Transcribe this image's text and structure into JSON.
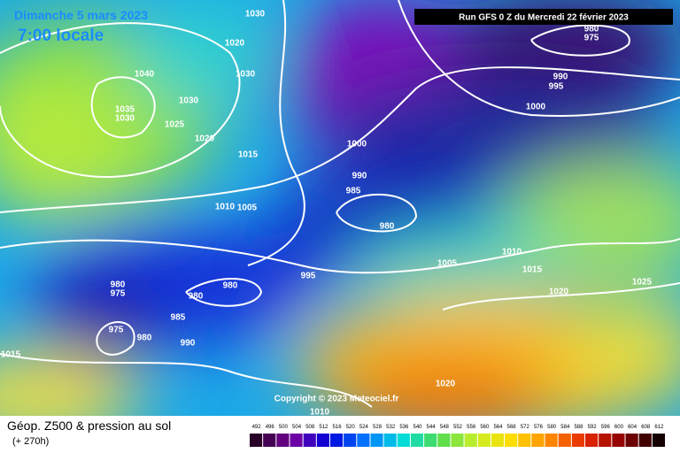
{
  "header": {
    "date": "Dimanche 5 mars 2023",
    "time": "7:00 locale",
    "run": "Run GFS 0 Z du Mercredi 22 février 2023"
  },
  "map": {
    "isobar_labels": [
      "1030",
      "1020",
      "1040",
      "1030",
      "1035",
      "1030",
      "1030",
      "1025",
      "1020",
      "1015",
      "1010",
      "1005",
      "1000",
      "990",
      "985",
      "980",
      "980",
      "975",
      "990",
      "995",
      "1000",
      "1010",
      "1015",
      "1005",
      "1020",
      "1025",
      "995",
      "980",
      "975",
      "980",
      "980",
      "985",
      "975",
      "980",
      "990",
      "1015",
      "1020",
      "1010"
    ],
    "copyright": "Copyright © 2023 Meteociel.fr"
  },
  "footer": {
    "title": "Géop. Z500 & pression au sol",
    "lead": "(+ 270h)"
  },
  "colorbar": {
    "ticks": [
      492,
      496,
      500,
      504,
      508,
      512,
      516,
      520,
      524,
      528,
      532,
      536,
      540,
      544,
      548,
      552,
      556,
      560,
      564,
      568,
      572,
      576,
      580,
      584,
      588,
      592,
      596,
      600,
      604,
      608,
      612
    ]
  }
}
